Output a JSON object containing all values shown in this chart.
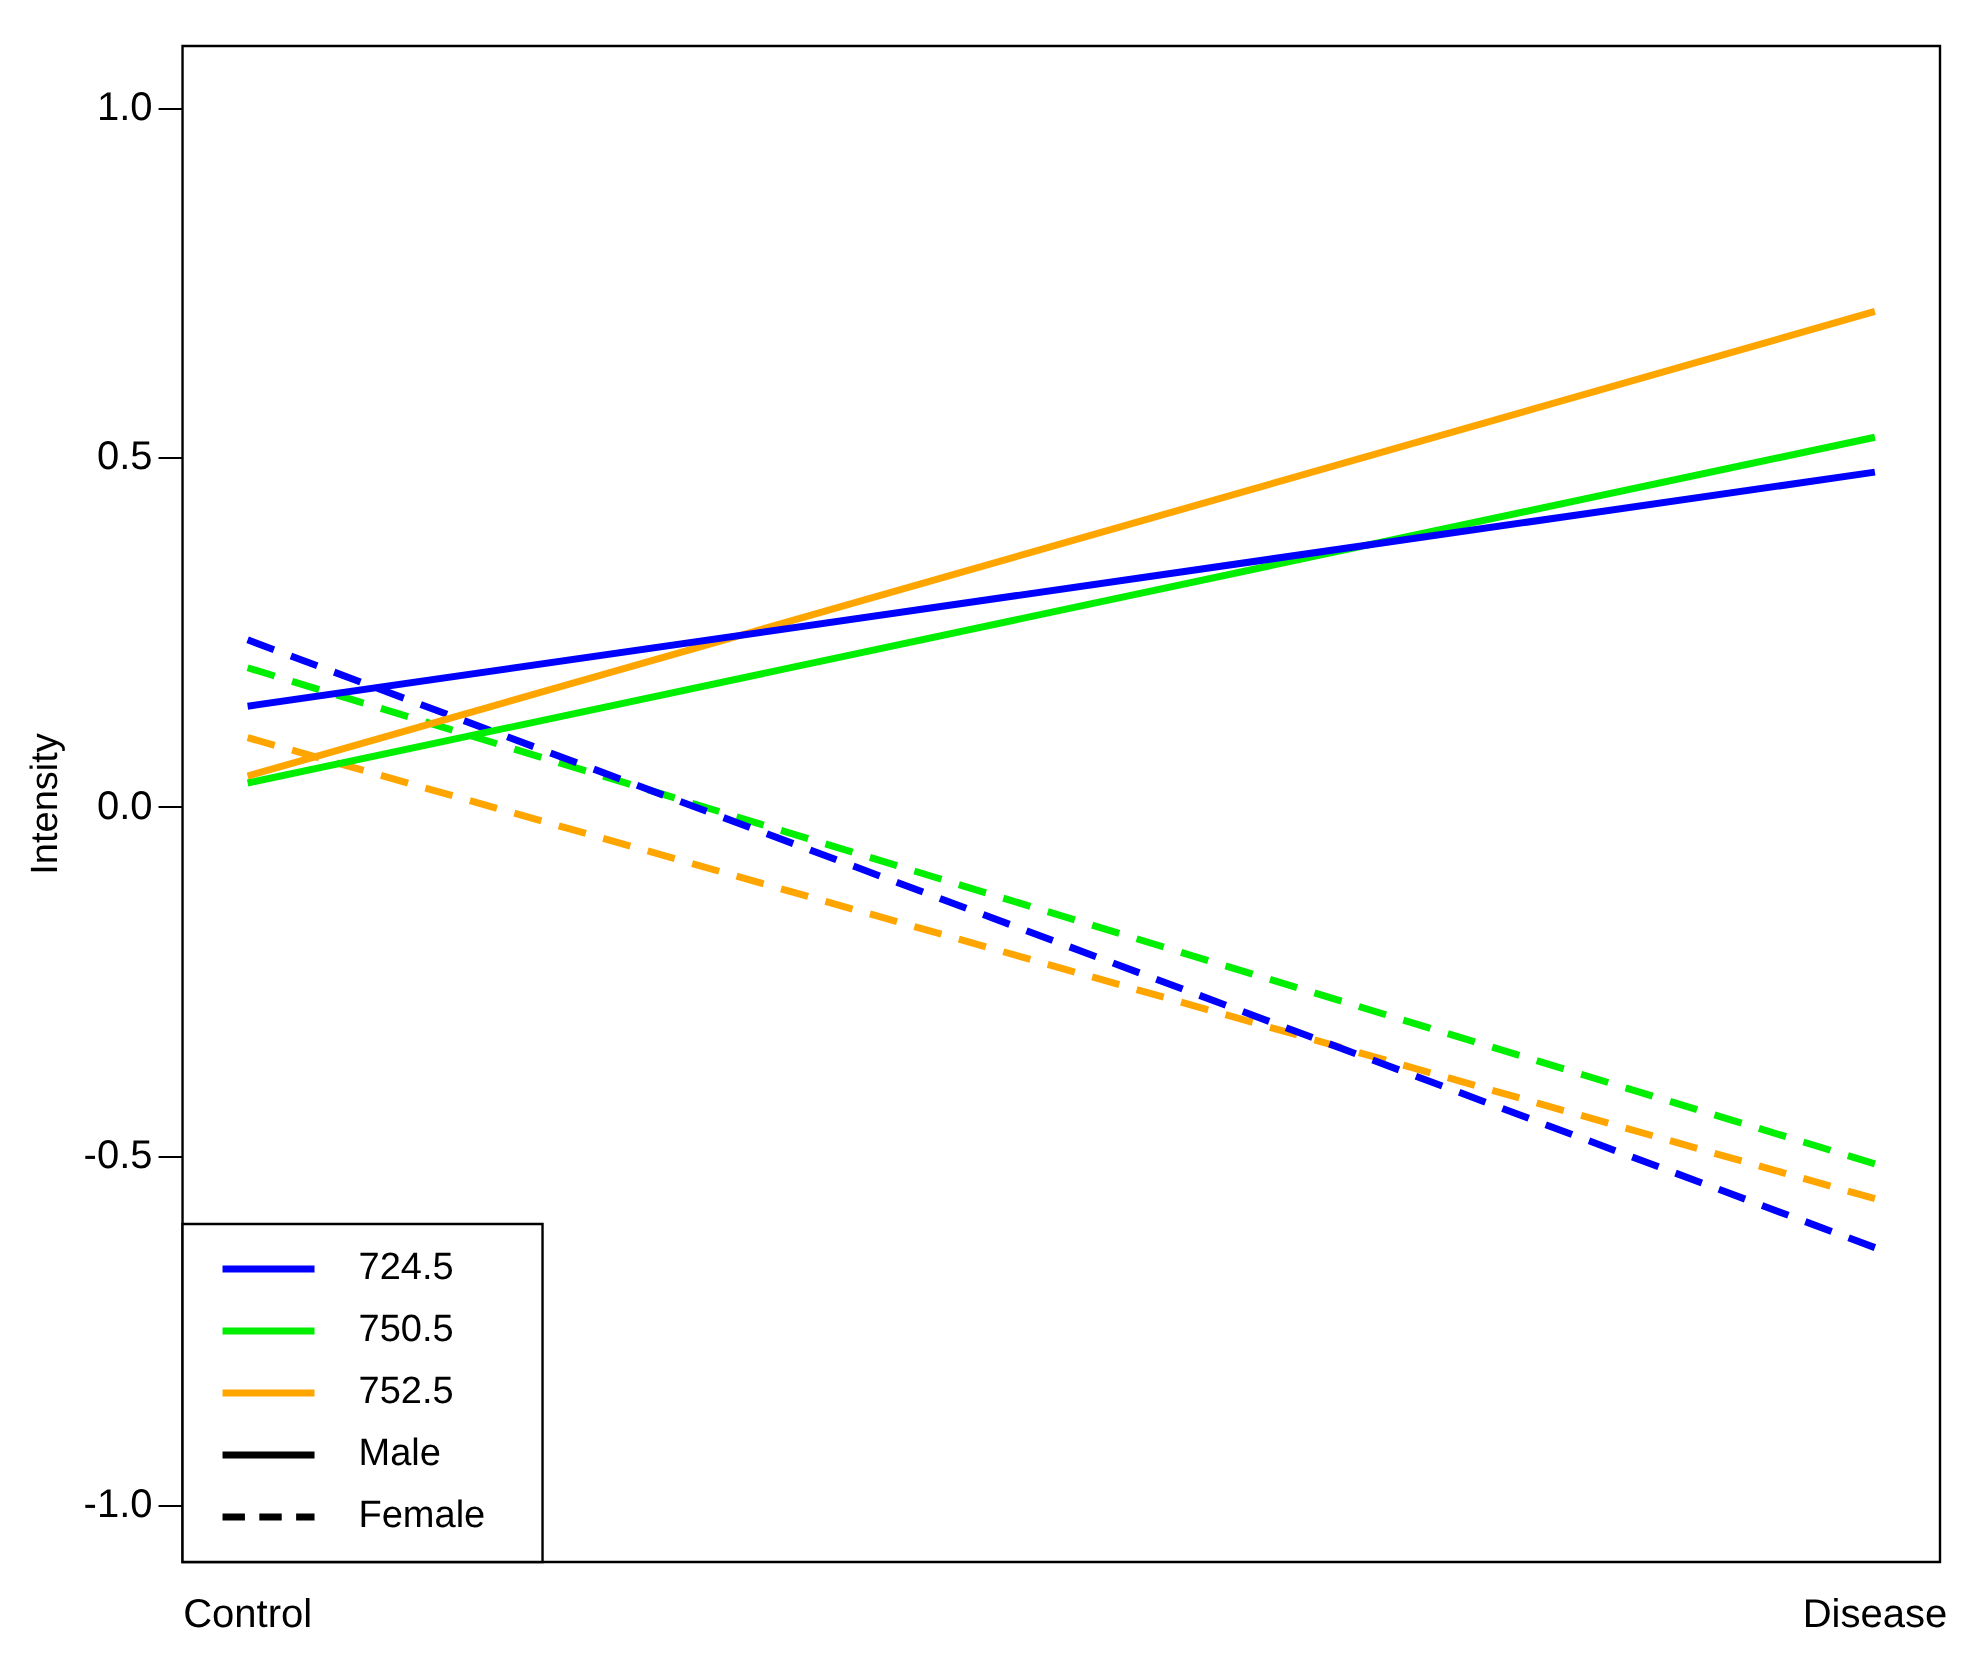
{
  "chart_data": {
    "type": "line",
    "ylabel": "Intensity",
    "categories": [
      "Control",
      "Disease"
    ],
    "series": [
      {
        "name": "724.5",
        "color": "#0000ff",
        "values": [
          0.145,
          0.48
        ],
        "line_style": "solid"
      },
      {
        "name": "750.5",
        "color": "#00ee00",
        "values": [
          0.035,
          0.53
        ],
        "line_style": "solid"
      },
      {
        "name": "752.5",
        "color": "#ffa500",
        "values": [
          0.045,
          0.71
        ],
        "line_style": "solid"
      },
      {
        "color": "#0000ff",
        "values": [
          0.24,
          -0.63
        ],
        "line_style": "dashed"
      },
      {
        "color": "#00ee00",
        "values": [
          0.2,
          -0.51
        ],
        "line_style": "dashed"
      },
      {
        "color": "#ffa500",
        "values": [
          0.1,
          -0.56
        ],
        "line_style": "dashed"
      },
      {
        "name": "Male",
        "color": "#000000",
        "values": [
          null,
          null
        ],
        "line_style": "solid"
      },
      {
        "name": "Female",
        "color": "#000000",
        "values": [
          null,
          null
        ],
        "line_style": "dashed"
      }
    ],
    "ylim": [
      -1.08,
      1.09
    ],
    "yticks": [
      {
        "value": -1,
        "label": "-1.0"
      },
      {
        "value": -0.5,
        "label": "-0.5"
      },
      {
        "value": 0,
        "label": "0.0"
      },
      {
        "value": 0.5,
        "label": "0.5"
      },
      {
        "value": 1,
        "label": "1.0"
      }
    ],
    "grid": false,
    "legend": "bottom left",
    "marker": "none"
  }
}
